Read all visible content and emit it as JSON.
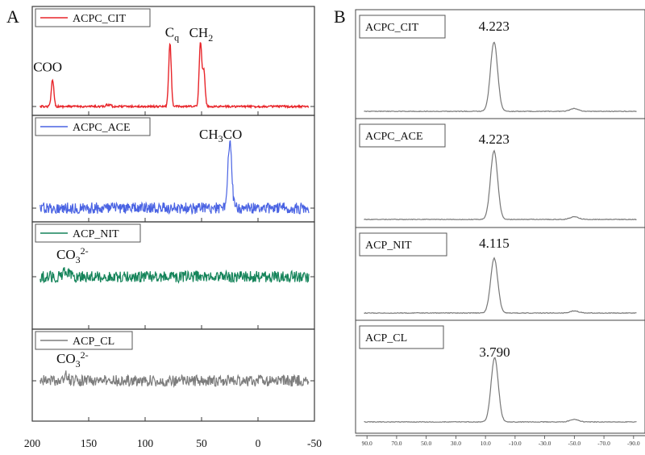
{
  "chart_data": [
    {
      "panel": "A",
      "type": "line",
      "x_ticks": [
        "200",
        "150",
        "100",
        "50",
        "0",
        "-50"
      ],
      "xlim": [
        200,
        -50
      ],
      "series": [
        {
          "name": "ACPC_CIT",
          "color": "#e8252a",
          "peaks": [
            {
              "x": 182,
              "height": 0.42,
              "label": "COO"
            },
            {
              "x": 78,
              "height": 0.98,
              "label": "C",
              "label_sub": "q"
            },
            {
              "x": 51,
              "height": 1.0,
              "label": "CH",
              "label_sub": "2"
            },
            {
              "x": 48,
              "height": 0.55
            }
          ],
          "noise": 0.02
        },
        {
          "name": "ACPC_ACE",
          "color": "#4a63e3",
          "peaks": [
            {
              "x": 25,
              "height": 1.0,
              "label_parts": [
                "CH",
                "3",
                "CO"
              ]
            }
          ],
          "noise": 0.14
        },
        {
          "name": "ACP_NIT",
          "color": "#15845a",
          "peaks": [
            {
              "x": 170,
              "height": 0.18,
              "label": "CO",
              "label_sub": "3",
              "label_sup": "2-"
            }
          ],
          "noise": 0.16
        },
        {
          "name": "ACP_CL",
          "color": "#7d7d7d",
          "peaks": [
            {
              "x": 170,
              "height": 0.16,
              "label": "CO",
              "label_sub": "3",
              "label_sup": "2-"
            }
          ],
          "noise": 0.16
        }
      ]
    },
    {
      "panel": "B",
      "type": "line",
      "x_ticks": [
        "90.0",
        "70.0",
        "50.0",
        "30.0",
        "10.0",
        "-10.0",
        "-30.0",
        "-50.0",
        "-70.0",
        "-90.0"
      ],
      "xlim": [
        95,
        -95
      ],
      "series": [
        {
          "name": "ACPC_CIT",
          "color": "#777777",
          "peak_x": 4.223,
          "peak_label": "4.223"
        },
        {
          "name": "ACPC_ACE",
          "color": "#777777",
          "peak_x": 4.223,
          "peak_label": "4.223"
        },
        {
          "name": "ACP_NIT",
          "color": "#777777",
          "peak_x": 4.115,
          "peak_label": "4.115"
        },
        {
          "name": "ACP_CL",
          "color": "#777777",
          "peak_x": 3.79,
          "peak_label": "3.790"
        }
      ]
    }
  ]
}
